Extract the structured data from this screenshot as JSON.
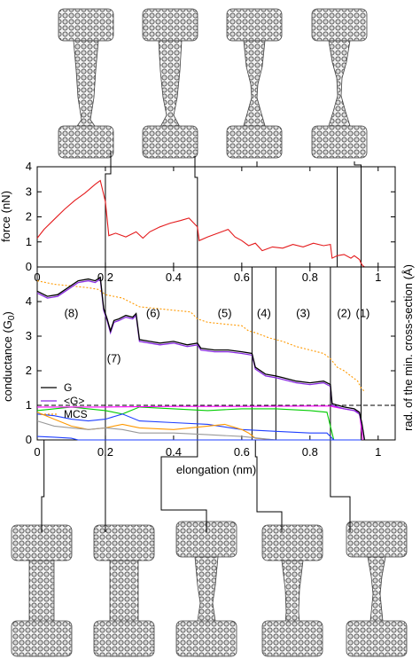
{
  "chart_data": [
    {
      "type": "line",
      "ylabel": "force (nN)",
      "xlim": [
        0,
        1.05
      ],
      "ylim": [
        0,
        4
      ],
      "x_ticks": [
        "0",
        "0.2",
        "0.4",
        "0.6",
        "0.8",
        "1"
      ],
      "y_ticks": [
        "0",
        "1",
        "2",
        "3",
        "4"
      ],
      "series": [
        {
          "color": "#e41a1c",
          "x": [
            0,
            0.02,
            0.05,
            0.08,
            0.11,
            0.14,
            0.17,
            0.185,
            0.2,
            0.21,
            0.23,
            0.26,
            0.29,
            0.31,
            0.33,
            0.36,
            0.39,
            0.42,
            0.445,
            0.47,
            0.475,
            0.5,
            0.53,
            0.56,
            0.58,
            0.6,
            0.62,
            0.64,
            0.66,
            0.69,
            0.72,
            0.75,
            0.78,
            0.81,
            0.84,
            0.86,
            0.865,
            0.88,
            0.9,
            0.92,
            0.93,
            0.945,
            0.95,
            0.955,
            0.96
          ],
          "y": [
            1.15,
            1.5,
            1.9,
            2.3,
            2.65,
            2.95,
            3.3,
            3.45,
            2.6,
            1.25,
            1.35,
            1.2,
            1.4,
            1.15,
            1.4,
            1.6,
            1.75,
            1.85,
            1.95,
            1.6,
            1.05,
            1.2,
            1.35,
            1.5,
            1.2,
            1.05,
            0.85,
            0.95,
            0.65,
            0.8,
            0.75,
            0.9,
            0.8,
            0.95,
            0.85,
            0.9,
            0.35,
            0.45,
            0.5,
            0.35,
            0.45,
            0.3,
            0.15,
            0.05,
            0.0
          ]
        }
      ]
    },
    {
      "type": "line",
      "xlabel": "elongation (nm)",
      "ylabel": "conductance (G0)",
      "y2label": "rad. of the min. cross-section (Å)",
      "xlim": [
        0,
        1.05
      ],
      "ylim": [
        0,
        5
      ],
      "x_ticks": [
        "0",
        "0.2",
        "0.4",
        "0.6",
        "0.8",
        "1"
      ],
      "y_ticks": [
        "0",
        "1",
        "2",
        "3",
        "4"
      ],
      "legend": {
        "position": "lower-left",
        "entries": [
          "G",
          "<G>",
          "MCS"
        ]
      },
      "region_labels": [
        "(8)",
        "(7)",
        "(6)",
        "(5)",
        "(4)",
        "(3)",
        "(2)",
        "(1)"
      ],
      "reference_line_y": 1,
      "series": [
        {
          "name": "G",
          "color": "#000000",
          "x": [
            0,
            0.03,
            0.06,
            0.09,
            0.12,
            0.15,
            0.17,
            0.185,
            0.195,
            0.205,
            0.215,
            0.225,
            0.24,
            0.26,
            0.28,
            0.29,
            0.3,
            0.33,
            0.36,
            0.4,
            0.44,
            0.47,
            0.48,
            0.52,
            0.56,
            0.6,
            0.63,
            0.64,
            0.67,
            0.7,
            0.72,
            0.76,
            0.8,
            0.84,
            0.86,
            0.865,
            0.9,
            0.93,
            0.945,
            0.952,
            0.96
          ],
          "y": [
            4.3,
            4.15,
            4.2,
            4.4,
            4.6,
            4.65,
            4.6,
            4.7,
            3.8,
            3.5,
            3.15,
            3.45,
            3.5,
            3.6,
            3.55,
            3.65,
            2.9,
            2.85,
            2.8,
            2.85,
            2.75,
            2.8,
            2.65,
            2.6,
            2.6,
            2.55,
            2.5,
            2.1,
            1.9,
            1.85,
            1.8,
            1.7,
            1.65,
            1.7,
            1.6,
            1.05,
            0.95,
            0.9,
            0.8,
            0.5,
            0.0
          ]
        },
        {
          "name": "<G>",
          "color": "#8a2be2",
          "x": [
            0,
            0.03,
            0.06,
            0.09,
            0.12,
            0.15,
            0.17,
            0.185,
            0.195,
            0.205,
            0.215,
            0.225,
            0.24,
            0.26,
            0.28,
            0.29,
            0.3,
            0.33,
            0.36,
            0.4,
            0.44,
            0.47,
            0.48,
            0.52,
            0.56,
            0.6,
            0.63,
            0.64,
            0.67,
            0.7,
            0.72,
            0.76,
            0.8,
            0.84,
            0.86,
            0.865,
            0.9,
            0.93,
            0.945,
            0.952,
            0.96
          ],
          "y": [
            4.25,
            4.1,
            4.15,
            4.35,
            4.55,
            4.6,
            4.55,
            4.65,
            3.75,
            3.45,
            3.1,
            3.4,
            3.45,
            3.55,
            3.5,
            3.6,
            2.85,
            2.8,
            2.75,
            2.8,
            2.7,
            2.75,
            2.6,
            2.55,
            2.55,
            2.5,
            2.45,
            2.05,
            1.85,
            1.8,
            1.75,
            1.65,
            1.6,
            1.65,
            1.55,
            1.0,
            0.9,
            0.85,
            0.75,
            0.45,
            0.0
          ]
        },
        {
          "name": "MCS",
          "color": "#ff9900",
          "dashed": true,
          "x": [
            0,
            0.05,
            0.1,
            0.15,
            0.18,
            0.2,
            0.25,
            0.3,
            0.35,
            0.4,
            0.45,
            0.47,
            0.5,
            0.55,
            0.6,
            0.62,
            0.64,
            0.68,
            0.72,
            0.76,
            0.8,
            0.84,
            0.86,
            0.88,
            0.9,
            0.92,
            0.94,
            0.95,
            0.96
          ],
          "y": [
            4.6,
            4.5,
            4.45,
            4.4,
            4.35,
            4.2,
            4.1,
            3.85,
            3.8,
            3.75,
            3.7,
            3.5,
            3.4,
            3.35,
            3.3,
            3.15,
            3.1,
            2.95,
            2.85,
            2.7,
            2.6,
            2.5,
            2.35,
            2.1,
            2.0,
            1.85,
            1.7,
            1.5,
            1.4
          ]
        },
        {
          "color": "#ff00ff",
          "x": [
            0,
            0.2,
            0.4,
            0.6,
            0.8,
            0.86,
            0.87,
            0.9,
            0.93,
            0.945,
            0.955
          ],
          "y": [
            0.95,
            0.95,
            0.97,
            0.97,
            0.98,
            0.98,
            0.95,
            0.9,
            0.85,
            0.8,
            0.0
          ]
        },
        {
          "color": "#00cc00",
          "x": [
            0,
            0.05,
            0.1,
            0.15,
            0.2,
            0.25,
            0.3,
            0.4,
            0.5,
            0.6,
            0.7,
            0.8,
            0.85,
            0.87,
            0.95
          ],
          "y": [
            0.85,
            0.9,
            0.95,
            0.9,
            0.85,
            0.75,
            0.95,
            0.9,
            0.85,
            0.9,
            0.9,
            0.85,
            0.8,
            0.0,
            0.0
          ]
        },
        {
          "color": "#1f3fff",
          "x": [
            0,
            0.05,
            0.1,
            0.15,
            0.2,
            0.25,
            0.3,
            0.4,
            0.5,
            0.6,
            0.7,
            0.8,
            0.85,
            0.87,
            0.95
          ],
          "y": [
            0.75,
            0.7,
            0.6,
            0.55,
            0.6,
            0.75,
            0.55,
            0.5,
            0.45,
            0.3,
            0.25,
            0.2,
            0.2,
            0.0,
            0.0
          ]
        },
        {
          "color": "#ff9900",
          "x": [
            0,
            0.05,
            0.1,
            0.15,
            0.2,
            0.25,
            0.3,
            0.4,
            0.5,
            0.55,
            0.6,
            0.62,
            0.64,
            0.7,
            0.8,
            0.95
          ],
          "y": [
            0.8,
            0.6,
            0.4,
            0.3,
            0.35,
            0.45,
            0.35,
            0.3,
            0.4,
            0.45,
            0.3,
            0.2,
            0.05,
            0.0,
            0.0,
            0.0
          ]
        },
        {
          "color": "#999999",
          "x": [
            0,
            0.05,
            0.1,
            0.15,
            0.2,
            0.25,
            0.3,
            0.4,
            0.5,
            0.6,
            0.65,
            0.7,
            0.95
          ],
          "y": [
            0.55,
            0.4,
            0.35,
            0.3,
            0.35,
            0.3,
            0.2,
            0.2,
            0.15,
            0.1,
            0.05,
            0.0,
            0.0
          ]
        },
        {
          "color": "#1f3fff",
          "x": [
            0,
            0.05,
            0.1,
            0.12,
            0.95
          ],
          "y": [
            0.1,
            0.08,
            0.05,
            0.0,
            0.0
          ]
        }
      ]
    }
  ],
  "snapshot_elongations_top": [
    0.2,
    0.47,
    0.88,
    0.95
  ],
  "snapshot_elongations_bottom": [
    0.02,
    0.2,
    0.47,
    0.64,
    0.86
  ]
}
